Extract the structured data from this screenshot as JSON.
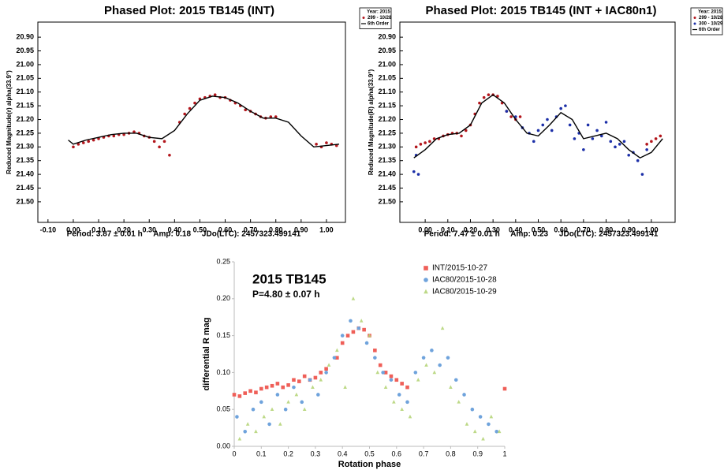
{
  "chart_data": [
    {
      "type": "scatter",
      "title": "Phased Plot: 2015 TB145 (INT)",
      "ylabel": "Reduced Magnitude(r) alpha(33.9°)",
      "footer": "Period: 3.87 ± 0.01 h     Amp: 0.18     JDo(LTC): 2457323.499141",
      "legend_title": "Year: 2015",
      "legend": "outside-top-right",
      "frame": true,
      "xlim": [
        -0.14,
        1.075
      ],
      "ylim": [
        21.575,
        20.845
      ],
      "xticks": [
        {
          "value": -0.1,
          "label": "-0.10"
        },
        {
          "value": 0,
          "label": "0.00"
        },
        {
          "value": 0.1,
          "label": "0.10"
        },
        {
          "value": 0.2,
          "label": "0.20"
        },
        {
          "value": 0.3,
          "label": "0.30"
        },
        {
          "value": 0.4,
          "label": "0.40"
        },
        {
          "value": 0.5,
          "label": "0.50"
        },
        {
          "value": 0.6,
          "label": "0.60"
        },
        {
          "value": 0.7,
          "label": "0.70"
        },
        {
          "value": 0.8,
          "label": "0.80"
        },
        {
          "value": 0.9,
          "label": "0.90"
        },
        {
          "value": 1.0,
          "label": "1.00"
        }
      ],
      "yticks": [
        {
          "value": 20.9,
          "label": "20.90"
        },
        {
          "value": 20.95,
          "label": "20.95"
        },
        {
          "value": 21.0,
          "label": "21.00"
        },
        {
          "value": 21.05,
          "label": "21.05"
        },
        {
          "value": 21.1,
          "label": "21.10"
        },
        {
          "value": 21.15,
          "label": "21.15"
        },
        {
          "value": 21.2,
          "label": "21.20"
        },
        {
          "value": 21.25,
          "label": "21.25"
        },
        {
          "value": 21.3,
          "label": "21.30"
        },
        {
          "value": 21.35,
          "label": "21.35"
        },
        {
          "value": 21.4,
          "label": "21.40"
        },
        {
          "value": 21.45,
          "label": "21.45"
        },
        {
          "value": 21.5,
          "label": "21.50"
        }
      ],
      "series": [
        {
          "name": "299 - 10/28",
          "color": "#b3161c",
          "style": "points",
          "marker": "circle",
          "x": [
            0,
            0.02,
            0.04,
            0.06,
            0.08,
            0.1,
            0.12,
            0.14,
            0.16,
            0.18,
            0.2,
            0.22,
            0.24,
            0.26,
            0.28,
            0.3,
            0.32,
            0.34,
            0.36,
            0.38,
            0.42,
            0.44,
            0.46,
            0.48,
            0.5,
            0.52,
            0.54,
            0.56,
            0.58,
            0.6,
            0.62,
            0.64,
            0.66,
            0.68,
            0.7,
            0.72,
            0.74,
            0.76,
            0.78,
            0.8,
            0.96,
            0.98,
            1.0,
            1.02,
            1.04
          ],
          "values": [
            21.3,
            21.29,
            21.285,
            21.28,
            21.275,
            21.27,
            21.265,
            21.26,
            21.26,
            21.255,
            21.255,
            21.25,
            21.245,
            21.25,
            21.26,
            21.265,
            21.28,
            21.3,
            21.28,
            21.33,
            21.21,
            21.18,
            21.16,
            21.14,
            21.125,
            21.12,
            21.115,
            21.11,
            21.12,
            21.12,
            21.13,
            21.14,
            21.15,
            21.165,
            21.17,
            21.18,
            21.19,
            21.195,
            21.19,
            21.19,
            21.29,
            21.3,
            21.285,
            21.29,
            21.295
          ]
        },
        {
          "name": "6th Order",
          "color": "#000000",
          "style": "line",
          "x": [
            -0.02,
            0,
            0.05,
            0.1,
            0.15,
            0.2,
            0.25,
            0.3,
            0.35,
            0.4,
            0.45,
            0.5,
            0.55,
            0.6,
            0.65,
            0.7,
            0.75,
            0.8,
            0.85,
            0.9,
            0.95,
            1.0,
            1.05
          ],
          "values": [
            21.275,
            21.29,
            21.275,
            21.265,
            21.255,
            21.25,
            21.25,
            21.265,
            21.27,
            21.24,
            21.18,
            21.13,
            21.115,
            21.12,
            21.14,
            21.17,
            21.195,
            21.195,
            21.21,
            21.26,
            21.3,
            21.295,
            21.29
          ]
        }
      ]
    },
    {
      "type": "scatter",
      "title": "Phased Plot: 2015 TB145 (INT + IAC80n1)",
      "ylabel": "Reduced Magnitude(R) alpha(33.9°)",
      "footer": "Period: 7.47 ± 0.01 h     Amp: 0.23     JDo(LTC): 2457323.499141",
      "legend_title": "Year: 2015",
      "legend": "outside-top-right",
      "frame": true,
      "xlim": [
        -0.112,
        1.105
      ],
      "ylim": [
        21.575,
        20.845
      ],
      "xticks": [
        {
          "value": 0,
          "label": "0.00"
        },
        {
          "value": 0.1,
          "label": "0.10"
        },
        {
          "value": 0.2,
          "label": "0.20"
        },
        {
          "value": 0.3,
          "label": "0.30"
        },
        {
          "value": 0.4,
          "label": "0.40"
        },
        {
          "value": 0.5,
          "label": "0.50"
        },
        {
          "value": 0.6,
          "label": "0.60"
        },
        {
          "value": 0.7,
          "label": "0.70"
        },
        {
          "value": 0.8,
          "label": "0.80"
        },
        {
          "value": 0.9,
          "label": "0.90"
        },
        {
          "value": 1.0,
          "label": "1.00"
        }
      ],
      "yticks": [
        {
          "value": 20.9,
          "label": "20.90"
        },
        {
          "value": 20.95,
          "label": "20.95"
        },
        {
          "value": 21.0,
          "label": "21.00"
        },
        {
          "value": 21.05,
          "label": "21.05"
        },
        {
          "value": 21.1,
          "label": "21.10"
        },
        {
          "value": 21.15,
          "label": "21.15"
        },
        {
          "value": 21.2,
          "label": "21.20"
        },
        {
          "value": 21.25,
          "label": "21.25"
        },
        {
          "value": 21.3,
          "label": "21.30"
        },
        {
          "value": 21.35,
          "label": "21.35"
        },
        {
          "value": 21.4,
          "label": "21.40"
        },
        {
          "value": 21.45,
          "label": "21.45"
        },
        {
          "value": 21.5,
          "label": "21.50"
        }
      ],
      "series": [
        {
          "name": "299 - 10/28",
          "color": "#b3161c",
          "style": "points",
          "marker": "circle",
          "x": [
            -0.04,
            -0.02,
            0,
            0.02,
            0.04,
            0.06,
            0.08,
            0.1,
            0.12,
            0.14,
            0.16,
            0.18,
            0.2,
            0.22,
            0.24,
            0.26,
            0.28,
            0.3,
            0.32,
            0.34,
            0.36,
            0.38,
            0.4,
            0.42,
            0.98,
            1.0,
            1.02,
            1.04
          ],
          "values": [
            21.3,
            21.29,
            21.285,
            21.28,
            21.27,
            21.27,
            21.26,
            21.255,
            21.25,
            21.25,
            21.26,
            21.24,
            21.22,
            21.18,
            21.14,
            21.12,
            21.11,
            21.11,
            21.115,
            21.14,
            21.17,
            21.19,
            21.2,
            21.19,
            21.29,
            21.28,
            21.27,
            21.26
          ]
        },
        {
          "name": "300 - 10/29",
          "color": "#1c2fa8",
          "style": "points",
          "marker": "circle",
          "x": [
            -0.05,
            -0.04,
            -0.03,
            0.36,
            0.4,
            0.43,
            0.46,
            0.48,
            0.5,
            0.52,
            0.54,
            0.56,
            0.58,
            0.6,
            0.62,
            0.64,
            0.66,
            0.68,
            0.7,
            0.72,
            0.74,
            0.76,
            0.78,
            0.8,
            0.82,
            0.84,
            0.86,
            0.88,
            0.9,
            0.92,
            0.94,
            0.96,
            0.98
          ],
          "values": [
            21.39,
            21.33,
            21.4,
            21.17,
            21.19,
            21.23,
            21.25,
            21.28,
            21.24,
            21.22,
            21.2,
            21.24,
            21.19,
            21.16,
            21.15,
            21.22,
            21.27,
            21.25,
            21.31,
            21.22,
            21.27,
            21.24,
            21.26,
            21.21,
            21.28,
            21.3,
            21.29,
            21.28,
            21.33,
            21.32,
            21.35,
            21.4,
            21.31
          ]
        },
        {
          "name": "6th Order",
          "color": "#000000",
          "style": "line",
          "x": [
            -0.05,
            0,
            0.05,
            0.1,
            0.15,
            0.2,
            0.25,
            0.3,
            0.35,
            0.4,
            0.45,
            0.5,
            0.55,
            0.6,
            0.65,
            0.7,
            0.75,
            0.8,
            0.85,
            0.9,
            0.95,
            1.0,
            1.05
          ],
          "values": [
            21.34,
            21.31,
            21.27,
            21.255,
            21.25,
            21.22,
            21.14,
            21.11,
            21.14,
            21.2,
            21.25,
            21.26,
            21.22,
            21.175,
            21.2,
            21.27,
            21.26,
            21.25,
            21.27,
            21.31,
            21.34,
            21.32,
            21.27
          ]
        }
      ]
    },
    {
      "type": "scatter",
      "title": "2015 TB145",
      "subtitle": "P=4.80 ± 0.07 h",
      "xlabel": "Rotation phase",
      "ylabel": "differential R mag",
      "legend": "top-right",
      "frame": false,
      "xlim": [
        0,
        1
      ],
      "ylim": [
        0,
        0.25
      ],
      "xticks": [
        0,
        0.1,
        0.2,
        0.3,
        0.4,
        0.5,
        0.6,
        0.7,
        0.8,
        0.9,
        1
      ],
      "yticks": [
        {
          "value": 0,
          "label": "0.00"
        },
        {
          "value": 0.05,
          "label": "0.05"
        },
        {
          "value": 0.1,
          "label": "0.10"
        },
        {
          "value": 0.15,
          "label": "0.15"
        },
        {
          "value": 0.2,
          "label": "0.20"
        },
        {
          "value": 0.25,
          "label": "0.25"
        }
      ],
      "series": [
        {
          "name": "INT/2015-10-27",
          "color": "#ef5f58",
          "style": "points",
          "marker": "square",
          "x": [
            0,
            0.02,
            0.04,
            0.06,
            0.08,
            0.1,
            0.12,
            0.14,
            0.16,
            0.18,
            0.2,
            0.22,
            0.24,
            0.26,
            0.28,
            0.3,
            0.32,
            0.34,
            0.38,
            0.4,
            0.42,
            0.44,
            0.46,
            0.48,
            0.5,
            0.52,
            0.54,
            0.56,
            0.58,
            0.6,
            0.62,
            0.64,
            1.0
          ],
          "values": [
            0.07,
            0.068,
            0.072,
            0.075,
            0.073,
            0.078,
            0.08,
            0.082,
            0.085,
            0.08,
            0.083,
            0.09,
            0.088,
            0.095,
            0.09,
            0.093,
            0.1,
            0.105,
            0.12,
            0.14,
            0.15,
            0.155,
            0.16,
            0.158,
            0.15,
            0.13,
            0.11,
            0.1,
            0.095,
            0.09,
            0.085,
            0.08,
            0.078
          ]
        },
        {
          "name": "IAC80/2015-10-28",
          "color": "#6fa3dc",
          "style": "points",
          "marker": "circle",
          "x": [
            0.01,
            0.04,
            0.07,
            0.1,
            0.13,
            0.16,
            0.19,
            0.22,
            0.25,
            0.28,
            0.31,
            0.34,
            0.37,
            0.4,
            0.43,
            0.46,
            0.49,
            0.52,
            0.55,
            0.58,
            0.61,
            0.64,
            0.67,
            0.7,
            0.73,
            0.76,
            0.79,
            0.82,
            0.85,
            0.88,
            0.91,
            0.94,
            0.97
          ],
          "values": [
            0.04,
            0.02,
            0.05,
            0.06,
            0.03,
            0.07,
            0.05,
            0.08,
            0.06,
            0.09,
            0.07,
            0.1,
            0.12,
            0.15,
            0.17,
            0.16,
            0.14,
            0.12,
            0.1,
            0.09,
            0.07,
            0.06,
            0.1,
            0.12,
            0.13,
            0.11,
            0.12,
            0.09,
            0.07,
            0.05,
            0.04,
            0.03,
            0.02
          ]
        },
        {
          "name": "IAC80/2015-10-29",
          "color": "#b6d57a",
          "style": "points",
          "marker": "triangle",
          "x": [
            0.02,
            0.05,
            0.08,
            0.11,
            0.14,
            0.17,
            0.2,
            0.23,
            0.26,
            0.29,
            0.32,
            0.35,
            0.38,
            0.41,
            0.44,
            0.47,
            0.5,
            0.53,
            0.56,
            0.59,
            0.62,
            0.65,
            0.68,
            0.71,
            0.74,
            0.77,
            0.8,
            0.83,
            0.86,
            0.89,
            0.92,
            0.95,
            0.98
          ],
          "values": [
            0.01,
            0.03,
            0.02,
            0.04,
            0.05,
            0.03,
            0.06,
            0.07,
            0.05,
            0.08,
            0.09,
            0.11,
            0.13,
            0.08,
            0.2,
            0.17,
            0.15,
            0.1,
            0.08,
            0.06,
            0.05,
            0.04,
            0.09,
            0.11,
            0.1,
            0.16,
            0.08,
            0.06,
            0.03,
            0.02,
            0.01,
            0.04,
            0.02
          ]
        }
      ]
    }
  ]
}
